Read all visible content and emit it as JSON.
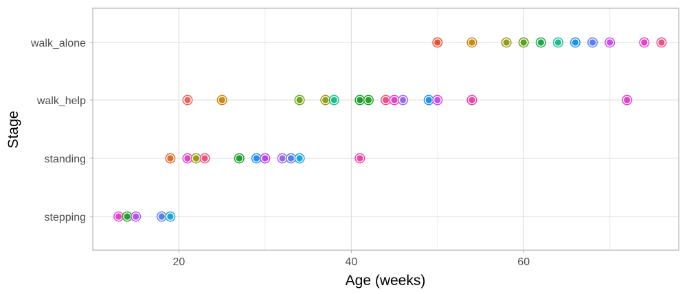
{
  "chart_data": {
    "type": "scatter",
    "xlabel": "Age (weeks)",
    "ylabel": "Stage",
    "xlim": [
      10,
      78
    ],
    "x_ticks": [
      20,
      40,
      60
    ],
    "categories": [
      "stepping",
      "standing",
      "walk_help",
      "walk_alone"
    ],
    "grid": true,
    "legend": "none",
    "points": [
      {
        "stage": "stepping",
        "x": 13,
        "color": "#E441C8"
      },
      {
        "stage": "stepping",
        "x": 14,
        "color": "#24A026"
      },
      {
        "stage": "stepping",
        "x": 15,
        "color": "#B452F0"
      },
      {
        "stage": "stepping",
        "x": 18,
        "color": "#5C7EE8"
      },
      {
        "stage": "stepping",
        "x": 19,
        "color": "#1BA5D8"
      },
      {
        "stage": "standing",
        "x": 19,
        "color": "#E16A2E"
      },
      {
        "stage": "standing",
        "x": 21,
        "color": "#E441C8"
      },
      {
        "stage": "standing",
        "x": 22,
        "color": "#9A9A1A"
      },
      {
        "stage": "standing",
        "x": 23,
        "color": "#EF4F86"
      },
      {
        "stage": "standing",
        "x": 27,
        "color": "#1E9E2C"
      },
      {
        "stage": "standing",
        "x": 29,
        "color": "#1E90F0"
      },
      {
        "stage": "standing",
        "x": 30,
        "color": "#B845E6"
      },
      {
        "stage": "standing",
        "x": 32,
        "color": "#9B6CEA"
      },
      {
        "stage": "standing",
        "x": 33,
        "color": "#5C7EE8"
      },
      {
        "stage": "standing",
        "x": 34,
        "color": "#1BA5D8"
      },
      {
        "stage": "standing",
        "x": 41,
        "color": "#EC45A8"
      },
      {
        "stage": "walk_help",
        "x": 21,
        "color": "#E8645A"
      },
      {
        "stage": "walk_help",
        "x": 25,
        "color": "#C88A14"
      },
      {
        "stage": "walk_help",
        "x": 34,
        "color": "#6EA31A"
      },
      {
        "stage": "walk_help",
        "x": 37,
        "color": "#9A9A1A"
      },
      {
        "stage": "walk_help",
        "x": 38,
        "color": "#1BBE90"
      },
      {
        "stage": "walk_help",
        "x": 41,
        "color": "#1E9E2C"
      },
      {
        "stage": "walk_help",
        "x": 42,
        "color": "#24A026"
      },
      {
        "stage": "walk_help",
        "x": 44,
        "color": "#EF4F86"
      },
      {
        "stage": "walk_help",
        "x": 45,
        "color": "#E441C8"
      },
      {
        "stage": "walk_help",
        "x": 46,
        "color": "#9B6CEA"
      },
      {
        "stage": "walk_help",
        "x": 49,
        "color": "#1E90F0"
      },
      {
        "stage": "walk_help",
        "x": 50,
        "color": "#C84CF0"
      },
      {
        "stage": "walk_help",
        "x": 54,
        "color": "#EC45A8"
      },
      {
        "stage": "walk_help",
        "x": 72,
        "color": "#E441C8"
      },
      {
        "stage": "walk_alone",
        "x": 50,
        "color": "#E8512E"
      },
      {
        "stage": "walk_alone",
        "x": 54,
        "color": "#C88A14"
      },
      {
        "stage": "walk_alone",
        "x": 58,
        "color": "#9A9A1A"
      },
      {
        "stage": "walk_alone",
        "x": 60,
        "color": "#5AA01A"
      },
      {
        "stage": "walk_alone",
        "x": 62,
        "color": "#1EA64A"
      },
      {
        "stage": "walk_alone",
        "x": 64,
        "color": "#1BBE90"
      },
      {
        "stage": "walk_alone",
        "x": 66,
        "color": "#1E90F0"
      },
      {
        "stage": "walk_alone",
        "x": 68,
        "color": "#5C7EE8"
      },
      {
        "stage": "walk_alone",
        "x": 70,
        "color": "#C84CF0"
      },
      {
        "stage": "walk_alone",
        "x": 74,
        "color": "#E441C8"
      },
      {
        "stage": "walk_alone",
        "x": 76,
        "color": "#EF4F86"
      }
    ]
  }
}
